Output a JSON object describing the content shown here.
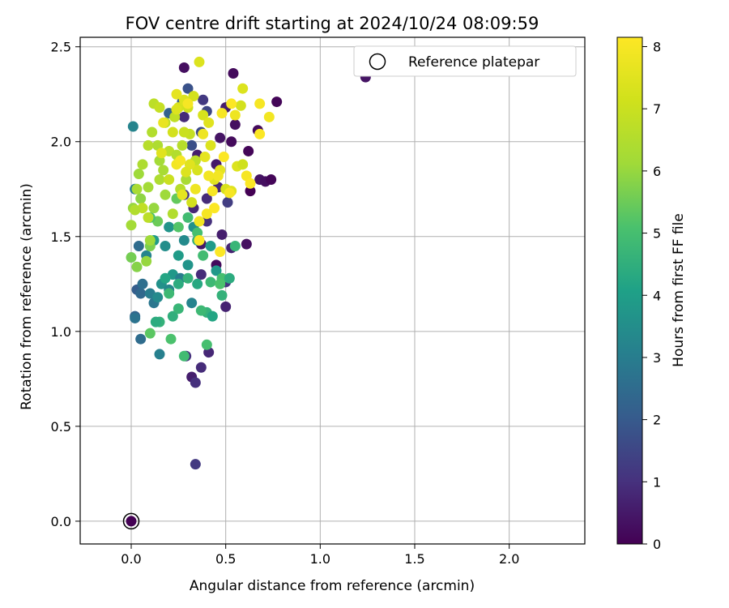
{
  "chart_data": {
    "type": "scatter",
    "title": "FOV centre drift starting at 2024/10/24 08:09:59",
    "xlabel": "Angular distance from reference (arcmin)",
    "ylabel": "Rotation from reference (arcmin)",
    "xlim": [
      -0.27,
      2.4
    ],
    "ylim": [
      -0.12,
      2.55
    ],
    "xticks": [
      "0.0",
      "0.5",
      "1.0",
      "1.5",
      "2.0"
    ],
    "xtick_values": [
      0,
      0.5,
      1.0,
      1.5,
      2.0
    ],
    "yticks": [
      "0.0",
      "0.5",
      "1.0",
      "1.5",
      "2.0",
      "2.5"
    ],
    "ytick_values": [
      0,
      0.5,
      1.0,
      1.5,
      2.0,
      2.5
    ],
    "grid": true,
    "legend": {
      "position": "top-right",
      "entries": [
        {
          "label": "Reference platepar",
          "marker": "open-circle"
        }
      ]
    },
    "reference_point": {
      "x": 0.0,
      "y": 0.0
    },
    "colorbar": {
      "label": "Hours from first FF file",
      "colormap": "viridis",
      "range": [
        0,
        8.15
      ],
      "ticks": [
        "0",
        "1",
        "2",
        "3",
        "4",
        "5",
        "6",
        "7",
        "8"
      ],
      "tick_values": [
        0,
        1,
        2,
        3,
        4,
        5,
        6,
        7,
        8
      ]
    },
    "series": [
      {
        "points": [
          [
            0.28,
            2.39,
            0.3
          ],
          [
            0.54,
            2.36,
            0.2
          ],
          [
            1.24,
            2.34,
            0.4
          ],
          [
            0.77,
            2.21,
            0.1
          ],
          [
            0.5,
            2.18,
            0.6
          ],
          [
            0.55,
            2.09,
            0.3
          ],
          [
            0.67,
            2.06,
            0.2
          ],
          [
            0.47,
            2.02,
            0.4
          ],
          [
            0.53,
            2.0,
            0.2
          ],
          [
            0.62,
            1.95,
            0.1
          ],
          [
            0.35,
            1.93,
            0.6
          ],
          [
            0.45,
            1.88,
            0.5
          ],
          [
            0.68,
            1.8,
            0.4
          ],
          [
            0.71,
            1.79,
            0.3
          ],
          [
            0.74,
            1.8,
            0.1
          ],
          [
            0.63,
            1.74,
            0.0
          ],
          [
            0.46,
            1.76,
            0.8
          ],
          [
            0.4,
            1.7,
            0.9
          ],
          [
            0.28,
            1.72,
            1.1
          ],
          [
            0.33,
            1.65,
            0.8
          ],
          [
            0.51,
            1.68,
            1.3
          ],
          [
            0.4,
            1.58,
            1.0
          ],
          [
            0.53,
            1.44,
            0.7
          ],
          [
            0.61,
            1.46,
            0.3
          ],
          [
            0.48,
            1.51,
            0.6
          ],
          [
            0.37,
            1.46,
            0.5
          ],
          [
            0.45,
            1.35,
            0.2
          ],
          [
            0.37,
            1.3,
            0.9
          ],
          [
            0.5,
            1.26,
            1.1
          ],
          [
            0.5,
            1.13,
            0.7
          ],
          [
            0.41,
            0.89,
            0.8
          ],
          [
            0.29,
            0.87,
            1.0
          ],
          [
            0.37,
            0.81,
            0.9
          ],
          [
            0.32,
            0.76,
            0.6
          ],
          [
            0.34,
            0.73,
            1.0
          ],
          [
            0.34,
            0.3,
            1.2
          ],
          [
            0.3,
            2.28,
            1.8
          ],
          [
            0.27,
            2.21,
            2.0
          ],
          [
            0.38,
            2.22,
            1.2
          ],
          [
            0.4,
            2.16,
            1.5
          ],
          [
            0.28,
            2.13,
            0.9
          ],
          [
            0.32,
            1.98,
            1.7
          ],
          [
            0.2,
            2.15,
            2.2
          ],
          [
            0.37,
            2.05,
            1.6
          ],
          [
            0.01,
            2.08,
            3.2
          ],
          [
            0.02,
            1.75,
            3.0
          ],
          [
            0.04,
            1.45,
            2.5
          ],
          [
            0.03,
            1.22,
            2.1
          ],
          [
            0.05,
            1.2,
            2.4
          ],
          [
            0.06,
            1.25,
            2.6
          ],
          [
            0.02,
            1.08,
            2.3
          ],
          [
            0.02,
            1.07,
            2.7
          ],
          [
            0.05,
            0.96,
            2.5
          ],
          [
            0.15,
            0.88,
            3.1
          ],
          [
            0.1,
            1.2,
            3.0
          ],
          [
            0.12,
            1.15,
            2.8
          ],
          [
            0.14,
            1.18,
            3.4
          ],
          [
            0.08,
            1.4,
            3.2
          ],
          [
            0.16,
            1.25,
            3.6
          ],
          [
            0.2,
            1.22,
            3.3
          ],
          [
            0.22,
            1.3,
            3.8
          ],
          [
            0.18,
            1.45,
            3.5
          ],
          [
            0.25,
            1.4,
            3.9
          ],
          [
            0.3,
            1.35,
            3.7
          ],
          [
            0.28,
            1.48,
            3.4
          ],
          [
            0.33,
            1.55,
            3.6
          ],
          [
            0.42,
            1.45,
            3.9
          ],
          [
            0.45,
            1.32,
            3.8
          ],
          [
            0.26,
            1.28,
            3.0
          ],
          [
            0.32,
            1.15,
            3.2
          ],
          [
            0.12,
            1.48,
            3.9
          ],
          [
            0.2,
            1.55,
            3.7
          ],
          [
            0.15,
            1.05,
            4.6
          ],
          [
            0.13,
            1.05,
            4.4
          ],
          [
            0.22,
            1.08,
            4.5
          ],
          [
            0.25,
            1.12,
            4.7
          ],
          [
            0.2,
            1.2,
            4.8
          ],
          [
            0.18,
            1.28,
            4.2
          ],
          [
            0.25,
            1.25,
            4.4
          ],
          [
            0.3,
            1.28,
            4.6
          ],
          [
            0.35,
            1.25,
            4.3
          ],
          [
            0.4,
            1.1,
            4.6
          ],
          [
            0.43,
            1.08,
            4.2
          ],
          [
            0.37,
            1.11,
            4.8
          ],
          [
            0.4,
            0.93,
            5.0
          ],
          [
            0.28,
            0.87,
            4.9
          ],
          [
            0.21,
            0.96,
            5.1
          ],
          [
            0.1,
            0.99,
            5.3
          ],
          [
            0.35,
            1.48,
            4.5
          ],
          [
            0.38,
            1.4,
            4.9
          ],
          [
            0.42,
            1.26,
            4.8
          ],
          [
            0.48,
            1.28,
            5.0
          ],
          [
            0.52,
            1.28,
            4.4
          ],
          [
            0.55,
            1.45,
            4.7
          ],
          [
            0.48,
            1.19,
            4.6
          ],
          [
            0.47,
            1.25,
            5.1
          ],
          [
            0.3,
            1.6,
            4.9
          ],
          [
            0.35,
            1.52,
            5.0
          ],
          [
            0.25,
            1.55,
            5.2
          ],
          [
            0.24,
            1.7,
            5.4
          ],
          [
            0.14,
            1.58,
            5.5
          ],
          [
            0.1,
            1.45,
            5.7
          ],
          [
            0.1,
            1.6,
            5.1
          ],
          [
            0.0,
            1.39,
            5.6
          ],
          [
            0.03,
            1.34,
            5.8
          ],
          [
            0.08,
            1.37,
            6.0
          ],
          [
            0.1,
            1.48,
            6.1
          ],
          [
            0.0,
            1.56,
            6.2
          ],
          [
            0.01,
            1.65,
            6.0
          ],
          [
            0.03,
            1.75,
            6.3
          ],
          [
            0.04,
            1.83,
            6.1
          ],
          [
            0.06,
            1.88,
            6.4
          ],
          [
            0.05,
            1.7,
            5.9
          ],
          [
            0.12,
            1.65,
            6.0
          ],
          [
            0.09,
            1.76,
            6.2
          ],
          [
            0.15,
            1.8,
            6.4
          ],
          [
            0.17,
            1.85,
            6.3
          ],
          [
            0.18,
            1.72,
            6.1
          ],
          [
            0.22,
            1.62,
            6.5
          ],
          [
            0.26,
            1.75,
            6.6
          ],
          [
            0.29,
            1.8,
            6.3
          ],
          [
            0.11,
            2.05,
            6.5
          ],
          [
            0.09,
            1.98,
            6.6
          ],
          [
            0.14,
            1.98,
            6.4
          ],
          [
            0.15,
            1.9,
            6.2
          ],
          [
            0.2,
            1.95,
            6.7
          ],
          [
            0.24,
            1.93,
            6.5
          ],
          [
            0.27,
            1.98,
            6.6
          ],
          [
            0.18,
            2.1,
            6.8
          ],
          [
            0.12,
            2.2,
            6.7
          ],
          [
            0.15,
            2.18,
            6.9
          ],
          [
            0.23,
            2.13,
            6.8
          ],
          [
            0.31,
            2.04,
            6.9
          ],
          [
            0.28,
            2.05,
            7.0
          ],
          [
            0.34,
            1.9,
            6.7
          ],
          [
            0.06,
            1.65,
            6.8
          ],
          [
            0.02,
            1.64,
            6.5
          ],
          [
            0.09,
            1.6,
            6.7
          ],
          [
            0.2,
            1.8,
            7.0
          ],
          [
            0.22,
            2.05,
            7.2
          ],
          [
            0.25,
            2.18,
            7.3
          ],
          [
            0.28,
            2.22,
            7.4
          ],
          [
            0.3,
            2.18,
            7.1
          ],
          [
            0.33,
            2.24,
            7.2
          ],
          [
            0.38,
            2.14,
            7.3
          ],
          [
            0.41,
            2.1,
            7.5
          ],
          [
            0.42,
            1.98,
            7.4
          ],
          [
            0.39,
            1.92,
            7.6
          ],
          [
            0.35,
            1.85,
            7.3
          ],
          [
            0.31,
            1.88,
            7.5
          ],
          [
            0.29,
            1.84,
            7.4
          ],
          [
            0.27,
            1.72,
            7.6
          ],
          [
            0.32,
            1.68,
            7.2
          ],
          [
            0.44,
            1.8,
            7.5
          ],
          [
            0.47,
            1.85,
            7.6
          ],
          [
            0.5,
            1.75,
            7.3
          ],
          [
            0.53,
            1.74,
            7.5
          ],
          [
            0.56,
            1.87,
            7.4
          ],
          [
            0.59,
            1.88,
            7.1
          ],
          [
            0.58,
            2.19,
            7.2
          ],
          [
            0.59,
            2.28,
            7.4
          ],
          [
            0.36,
            2.42,
            7.4
          ],
          [
            0.24,
            2.25,
            7.6
          ],
          [
            0.17,
            2.1,
            7.7
          ],
          [
            0.24,
            2.17,
            7.4
          ],
          [
            0.16,
            1.94,
            7.5
          ],
          [
            0.24,
            1.88,
            7.9
          ],
          [
            0.26,
            1.9,
            8.0
          ],
          [
            0.3,
            2.2,
            8.0
          ],
          [
            0.38,
            2.04,
            7.8
          ],
          [
            0.41,
            1.82,
            7.9
          ],
          [
            0.43,
            1.74,
            8.0
          ],
          [
            0.44,
            1.65,
            8.1
          ],
          [
            0.4,
            1.62,
            8.0
          ],
          [
            0.36,
            1.58,
            7.9
          ],
          [
            0.36,
            1.48,
            8.1
          ],
          [
            0.47,
            1.42,
            8.1
          ],
          [
            0.46,
            1.82,
            7.9
          ],
          [
            0.49,
            1.92,
            8.1
          ],
          [
            0.48,
            2.15,
            8.0
          ],
          [
            0.53,
            2.2,
            8.1
          ],
          [
            0.55,
            2.14,
            7.8
          ],
          [
            0.61,
            1.82,
            8.0
          ],
          [
            0.63,
            1.78,
            8.1
          ],
          [
            0.68,
            2.2,
            8.0
          ],
          [
            0.68,
            2.04,
            8.1
          ],
          [
            0.73,
            2.13,
            7.9
          ],
          [
            0.52,
            1.73,
            8.0
          ],
          [
            0.34,
            1.75,
            7.8
          ]
        ]
      }
    ]
  }
}
